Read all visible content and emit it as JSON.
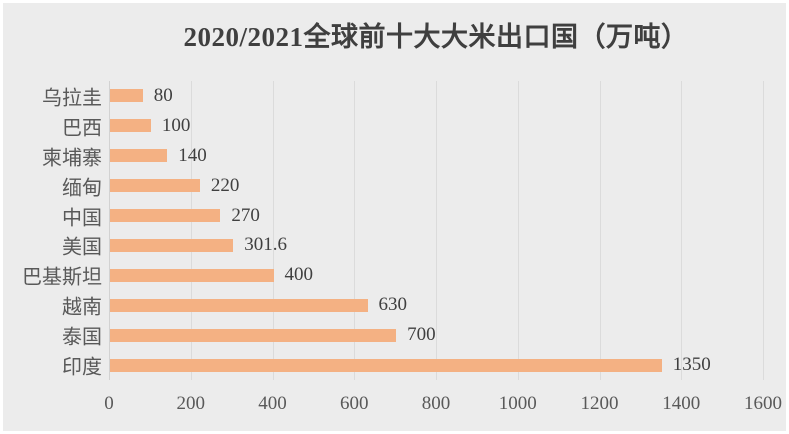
{
  "title": "2020/2021全球前十大大米出口国（万吨）",
  "colors": {
    "background": "#ECECEC",
    "page_border": "#FFFFFF",
    "bar": "#F4B183",
    "gridline": "#DBDBDB",
    "axis_line": "#D2D2D2",
    "title_text": "#3F3F3F",
    "label_text": "#595959",
    "value_text": "#404040"
  },
  "chart_data": {
    "type": "bar",
    "orientation": "horizontal",
    "title": "2020/2021全球前十大大米出口国（万吨）",
    "categories": [
      "乌拉圭",
      "巴西",
      "柬埔寨",
      "缅甸",
      "中国",
      "美国",
      "巴基斯坦",
      "越南",
      "泰国",
      "印度"
    ],
    "values": [
      80,
      100,
      140,
      220,
      270,
      301.6,
      400,
      630,
      700,
      1350
    ],
    "value_labels": [
      "80",
      "100",
      "140",
      "220",
      "270",
      "301.6",
      "400",
      "630",
      "700",
      "1350"
    ],
    "xlabel": "",
    "ylabel": "",
    "xlim": [
      0,
      1600
    ],
    "x_ticks": [
      0,
      200,
      400,
      600,
      800,
      1000,
      1200,
      1400,
      1600
    ],
    "grid": true,
    "legend": "none",
    "data_labels": "outside-end"
  }
}
